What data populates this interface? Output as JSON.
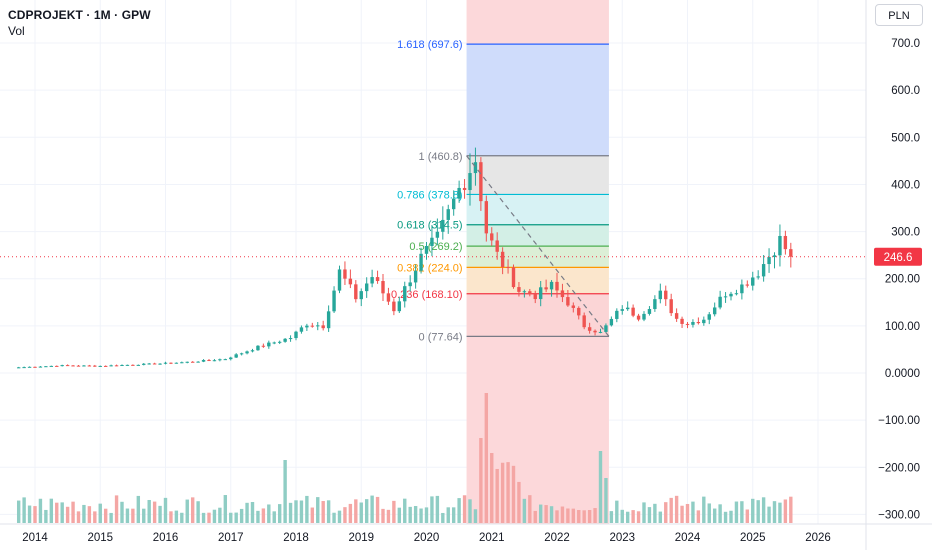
{
  "legend": {
    "title": "CDPROJEKT · 1M · GPW",
    "indicator": "Vol"
  },
  "currency_button": "PLN",
  "price_label": "246.6",
  "chart_data": {
    "type": "candlestick",
    "symbol": "CDPROJEKT",
    "interval": "1M",
    "exchange": "GPW",
    "y_axis": {
      "ticks": [
        "700.0",
        "600.0",
        "500.0",
        "400.0",
        "300.0",
        "200.00",
        "100.00",
        "0.0000",
        "−100.00",
        "−200.00",
        "−300.00"
      ],
      "values": [
        700,
        600,
        500,
        400,
        300,
        200,
        100,
        0,
        -100,
        -200,
        -300
      ],
      "range": [
        -300,
        700
      ]
    },
    "x_axis": {
      "ticks": [
        "2014",
        "2015",
        "2016",
        "2017",
        "2018",
        "2019",
        "2020",
        "2021",
        "2022",
        "2023",
        "2024",
        "2025",
        "2026"
      ]
    },
    "last_price": 246.6,
    "key_prices": [
      {
        "date": "2013-10",
        "close": 12
      },
      {
        "date": "2016-12",
        "close": 30
      },
      {
        "date": "2018-06",
        "close": 100
      },
      {
        "date": "2018-09",
        "close": 215
      },
      {
        "date": "2019-07",
        "close": 135
      },
      {
        "date": "2020-10",
        "close": 455
      },
      {
        "date": "2020-11",
        "high": 460.8
      },
      {
        "date": "2021-06",
        "close": 175
      },
      {
        "date": "2022-09",
        "low": 77.64
      },
      {
        "date": "2023-08",
        "close": 168
      },
      {
        "date": "2024-01",
        "close": 105
      },
      {
        "date": "2025-06",
        "close": 282
      },
      {
        "date": "2025-08",
        "close": 246.6
      }
    ],
    "fibonacci": {
      "levels": [
        {
          "label": "1.618 (697.6)",
          "value": 697.6,
          "color": "#2962ff"
        },
        {
          "label": "1 (460.8)",
          "value": 460.8,
          "color": "#787b86"
        },
        {
          "label": "0.786 (378.8)",
          "value": 378.8,
          "color": "#00bcd4"
        },
        {
          "label": "0.618 (314.5)",
          "value": 314.5,
          "color": "#089981"
        },
        {
          "label": "0.5 (269.2)",
          "value": 269.2,
          "color": "#4caf50"
        },
        {
          "label": "0.382 (224.0)",
          "value": 224.0,
          "color": "#ff9800"
        },
        {
          "label": "0.236 (168.10)",
          "value": 168.1,
          "color": "#f23645"
        },
        {
          "label": "0 (77.64)",
          "value": 77.64,
          "color": "#787b86"
        }
      ],
      "start": "2020-11",
      "end": "2022-09"
    },
    "colors": {
      "up": "#26a69a",
      "down": "#ef5350",
      "vol_up": "#8fcdc4",
      "vol_down": "#f4a6a4",
      "price_line": "#f23645"
    }
  }
}
